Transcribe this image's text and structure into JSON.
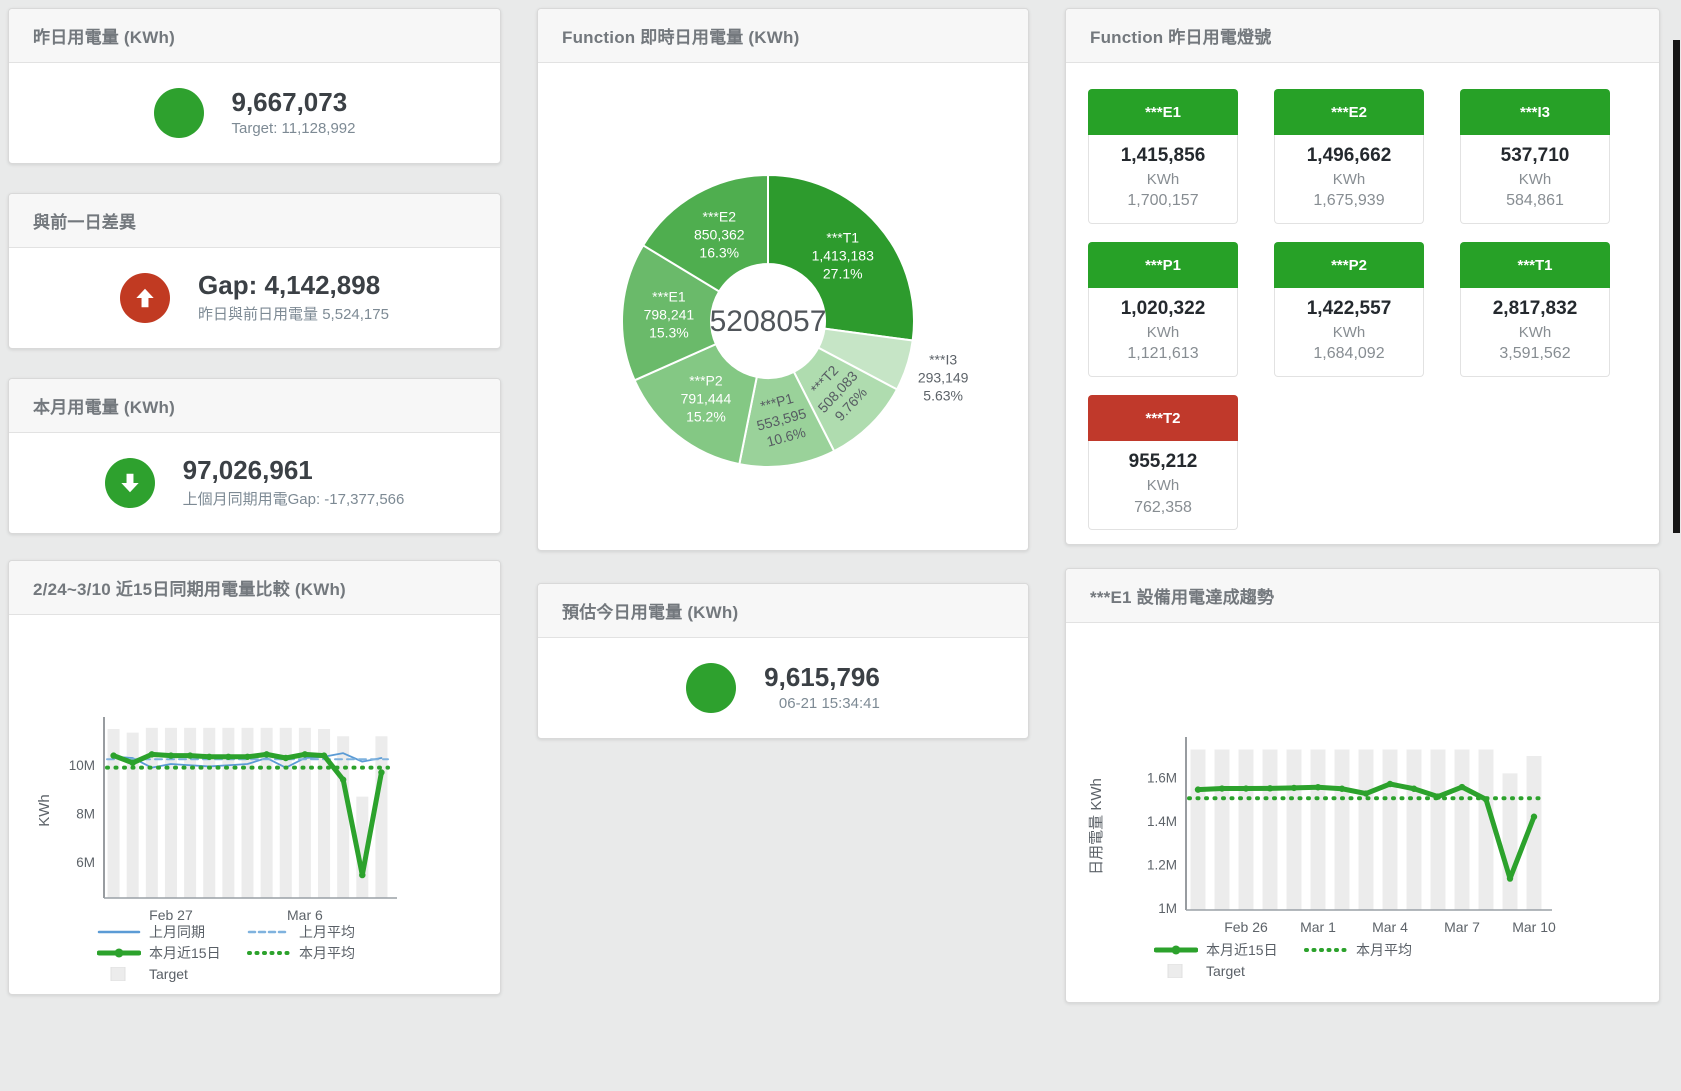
{
  "cards": {
    "yesterday": {
      "title": "昨日用電量 (KWh)",
      "value": "9,667,073",
      "subtitle": "Target: 11,128,992",
      "status_color": "#2ea12e"
    },
    "gap": {
      "title": "與前一日差異",
      "value": "Gap: 4,142,898",
      "subtitle": "昨日與前日用電量 5,524,175",
      "status_color": "#c13a22"
    },
    "month": {
      "title": "本月用電量 (KWh)",
      "value": "97,026,961",
      "subtitle": "上個月同期用電Gap: -17,377,566",
      "status_color": "#2ea12e"
    },
    "realtime": {
      "title": "Function 即時日用電量 (KWh)"
    },
    "lights": {
      "title": "Function 昨日用電燈號",
      "tiles": [
        {
          "label": "***E1",
          "value": "1,415,856",
          "unit": "KWh",
          "target": "1,700,157",
          "color": "#27a127"
        },
        {
          "label": "***E2",
          "value": "1,496,662",
          "unit": "KWh",
          "target": "1,675,939",
          "color": "#27a127"
        },
        {
          "label": "***I3",
          "value": "537,710",
          "unit": "KWh",
          "target": "584,861",
          "color": "#27a127"
        },
        {
          "label": "***P1",
          "value": "1,020,322",
          "unit": "KWh",
          "target": "1,121,613",
          "color": "#27a127"
        },
        {
          "label": "***P2",
          "value": "1,422,557",
          "unit": "KWh",
          "target": "1,684,092",
          "color": "#27a127"
        },
        {
          "label": "***T1",
          "value": "2,817,832",
          "unit": "KWh",
          "target": "3,591,562",
          "color": "#27a127"
        },
        {
          "label": "***T2",
          "value": "955,212",
          "unit": "KWh",
          "target": "762,358",
          "color": "#c0392b"
        }
      ]
    },
    "compare": {
      "title": "2/24~3/10 近15日同期用電量比較 (KWh)"
    },
    "forecast": {
      "title": "預估今日用電量 (KWh)",
      "value": "9,615,796",
      "subtitle": "06-21 15:34:41",
      "status_color": "#2ea12e"
    },
    "trend": {
      "title": "***E1 設備用電達成趨勢"
    }
  },
  "chart_data": [
    {
      "type": "pie",
      "title": "Function 即時日用電量 (KWh)",
      "center_total": "5208057",
      "start_angle_deg": 0,
      "direction": "clockwise",
      "slices": [
        {
          "name": "***T1",
          "value": 1413183,
          "value_text": "1,413,183",
          "pct_text": "27.1%",
          "color": "#2d9b2d",
          "label_color": "#ffffff",
          "rotate": 0
        },
        {
          "name": "***I3",
          "value": 293149,
          "value_text": "293,149",
          "pct_text": "5.63%",
          "color": "#c6e5c6",
          "label_color": "#5d6369",
          "rotate": 0,
          "outside": true
        },
        {
          "name": "***T2",
          "value": 508083,
          "value_text": "508,083",
          "pct_text": "9.76%",
          "color": "#afdcaf",
          "label_color": "#565c62",
          "rotate": -47
        },
        {
          "name": "***P1",
          "value": 553595,
          "value_text": "553,595",
          "pct_text": "10.6%",
          "color": "#9ad29a",
          "label_color": "#565c62",
          "rotate": -15
        },
        {
          "name": "***P2",
          "value": 791444,
          "value_text": "791,444",
          "pct_text": "15.2%",
          "color": "#84c884",
          "label_color": "#ffffff",
          "rotate": 0
        },
        {
          "name": "***E1",
          "value": 798241,
          "value_text": "798,241",
          "pct_text": "15.3%",
          "color": "#6aba6a",
          "label_color": "#ffffff",
          "rotate": 0
        },
        {
          "name": "***E2",
          "value": 850362,
          "value_text": "850,362",
          "pct_text": "16.3%",
          "color": "#4fae4f",
          "label_color": "#ffffff",
          "rotate": 0
        }
      ]
    },
    {
      "type": "line",
      "title": "2/24~3/10 近15日同期用電量比較 (KWh)",
      "ylabel": "KWh",
      "ylim": [
        4500000,
        11750000
      ],
      "yticks": [
        {
          "label": "6M",
          "value": 6000000
        },
        {
          "label": "8M",
          "value": 8000000
        },
        {
          "label": "10M",
          "value": 10000000
        }
      ],
      "x_ticks": [
        {
          "label": "Feb 27",
          "index": 3
        },
        {
          "label": "Mar 6",
          "index": 10
        }
      ],
      "target_bars": {
        "name": "Target",
        "color": "#ececec",
        "values": [
          11500000,
          11350000,
          11550000,
          11550000,
          11550000,
          11550000,
          11550000,
          11550000,
          11550000,
          11550000,
          11550000,
          11500000,
          11200000,
          8700000,
          11200000
        ]
      },
      "series": [
        {
          "name": "上月同期",
          "style": "line",
          "color": "#5b9bd5",
          "width": 1.8,
          "values": [
            10350000,
            10300000,
            9900000,
            10050000,
            10000000,
            9950000,
            10000000,
            10050000,
            10300000,
            9900000,
            10300000,
            10350000,
            10500000,
            10150000,
            10300000
          ]
        },
        {
          "name": "上月平均",
          "style": "avg-dashed",
          "color": "#7fb2de",
          "value": 10250000
        },
        {
          "name": "本月平均",
          "style": "avg-dotted",
          "color": "#2ca22c",
          "value": 9900000
        },
        {
          "name": "本月近15日",
          "style": "line-thick",
          "color": "#2ca22c",
          "width": 5,
          "values": [
            10400000,
            10100000,
            10450000,
            10400000,
            10400000,
            10350000,
            10350000,
            10350000,
            10450000,
            10300000,
            10450000,
            10400000,
            9400000,
            5450000,
            9700000
          ]
        }
      ],
      "legend": [
        {
          "label": "上月同期",
          "marker": "line",
          "color": "#5b9bd5"
        },
        {
          "label": "上月平均",
          "marker": "dashed",
          "color": "#7fb2de"
        },
        {
          "label": "本月近15日",
          "marker": "thick",
          "color": "#2ca22c"
        },
        {
          "label": "本月平均",
          "marker": "dotted",
          "color": "#2ca22c"
        },
        {
          "label": "Target",
          "marker": "square",
          "color": "#ececec"
        }
      ],
      "legend_position": "bottom"
    },
    {
      "type": "line",
      "title": "***E1 設備用電達成趨勢",
      "ylabel": "日用電量 KWh",
      "ylim": [
        990000,
        1760000
      ],
      "yticks": [
        {
          "label": "1M",
          "value": 1000000
        },
        {
          "label": "1.2M",
          "value": 1200000
        },
        {
          "label": "1.4M",
          "value": 1400000
        },
        {
          "label": "1.6M",
          "value": 1600000
        }
      ],
      "x_ticks": [
        {
          "label": "Feb 26",
          "index": 2
        },
        {
          "label": "Mar 1",
          "index": 5
        },
        {
          "label": "Mar 4",
          "index": 8
        },
        {
          "label": "Mar 7",
          "index": 11
        },
        {
          "label": "Mar 10",
          "index": 14
        }
      ],
      "target_bars": {
        "name": "Target",
        "color": "#ececec",
        "values": [
          1730000,
          1730000,
          1730000,
          1730000,
          1730000,
          1730000,
          1730000,
          1730000,
          1730000,
          1730000,
          1730000,
          1730000,
          1730000,
          1620000,
          1700000
        ]
      },
      "series": [
        {
          "name": "本月平均",
          "style": "avg-dotted",
          "color": "#2ca22c",
          "value": 1505000
        },
        {
          "name": "本月近15日",
          "style": "line-thick",
          "color": "#2ca22c",
          "width": 5,
          "values": [
            1545000,
            1550000,
            1550000,
            1551000,
            1553000,
            1556000,
            1549000,
            1527000,
            1571000,
            1549000,
            1513000,
            1557000,
            1500000,
            1135000,
            1420000
          ]
        }
      ],
      "legend": [
        {
          "label": "本月近15日",
          "marker": "thick",
          "color": "#2ca22c"
        },
        {
          "label": "本月平均",
          "marker": "dotted",
          "color": "#2ca22c"
        },
        {
          "label": "Target",
          "marker": "square",
          "color": "#ececec"
        }
      ],
      "legend_position": "bottom"
    }
  ]
}
